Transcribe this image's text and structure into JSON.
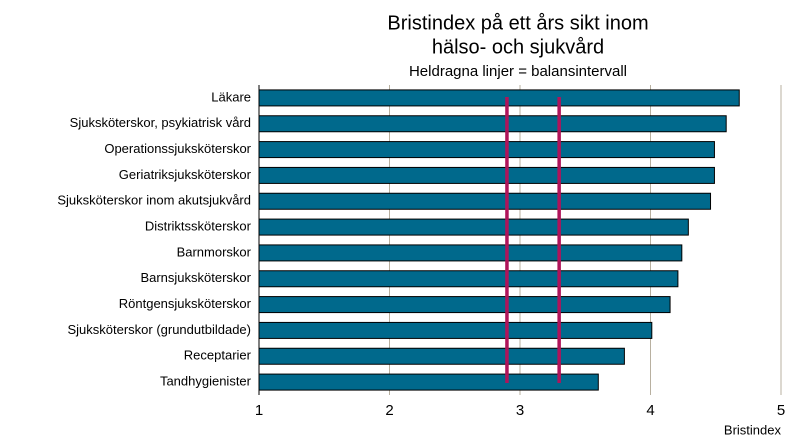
{
  "chart_data": {
    "type": "barh",
    "title": [
      "Bristindex på ett års sikt inom",
      "hälso- och sjukvård"
    ],
    "subtitle": "Heldragna linjer = balansintervall",
    "x_label": "Bristindex",
    "categories": [
      "Läkare",
      "Sjuksköterskor, psykiatrisk vård",
      "Operationssjuksköterskor",
      "Geriatriksjuksköterskor",
      "Sjuksköterskor inom akutsjukvård",
      "Distriktssköterskor",
      "Barnmorskor",
      "Barnsjuksköterskor",
      "Röntgensjuksköterskor",
      "Sjuksköterskor (grundutbildade)",
      "Receptarier",
      "Tandhygienister"
    ],
    "values": [
      4.68,
      4.58,
      4.49,
      4.49,
      4.46,
      4.29,
      4.24,
      4.21,
      4.15,
      4.01,
      3.8,
      3.6
    ],
    "color": "#00698c",
    "balance_lines": [
      2.9,
      3.3
    ],
    "balance_color": "#b0145a",
    "xlim": [
      1,
      5
    ],
    "xticks": [
      1,
      2,
      3,
      4,
      5
    ],
    "grid": true
  }
}
